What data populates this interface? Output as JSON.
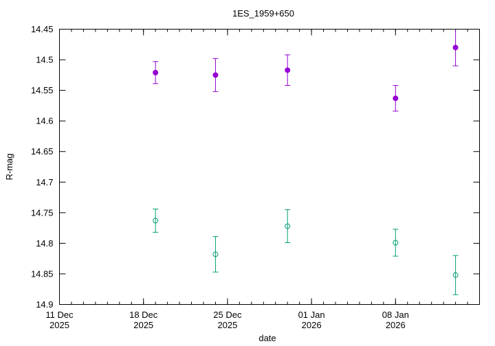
{
  "chart_data": {
    "type": "scatter",
    "title": "1ES_1959+650",
    "xlabel": "date",
    "ylabel": "R-mag",
    "y_inverted": true,
    "ylim": [
      14.9,
      14.45
    ],
    "xlim": [
      "2025-12-11",
      "2026-01-15"
    ],
    "y_ticks": [
      14.45,
      14.5,
      14.55,
      14.6,
      14.65,
      14.7,
      14.75,
      14.8,
      14.85,
      14.9
    ],
    "y_tick_labels": [
      "14.45",
      "14.5",
      "14.55",
      "14.6",
      "14.65",
      "14.7",
      "14.75",
      "14.8",
      "14.85",
      "14.9"
    ],
    "x_ticks": [
      {
        "date": "2025-12-11",
        "line1": "11 Dec",
        "line2": "2025"
      },
      {
        "date": "2025-12-18",
        "line1": "18 Dec",
        "line2": "2025"
      },
      {
        "date": "2025-12-25",
        "line1": "25 Dec",
        "line2": "2025"
      },
      {
        "date": "2026-01-01",
        "line1": "01 Jan",
        "line2": "2026"
      },
      {
        "date": "2026-01-08",
        "line1": "08 Jan",
        "line2": "2026"
      }
    ],
    "grid": false,
    "series": [
      {
        "color": "#9400d3",
        "marker": "filled-circle",
        "points": [
          {
            "x": "2025-12-19",
            "y": 14.521,
            "err": 0.018
          },
          {
            "x": "2025-12-24",
            "y": 14.525,
            "err": 0.027
          },
          {
            "x": "2025-12-30",
            "y": 14.517,
            "err": 0.025
          },
          {
            "x": "2026-01-08",
            "y": 14.563,
            "err": 0.021
          },
          {
            "x": "2026-01-13",
            "y": 14.48,
            "err": 0.03
          }
        ]
      },
      {
        "color": "#009e73",
        "marker": "open-circle",
        "points": [
          {
            "x": "2025-12-19",
            "y": 14.763,
            "err": 0.019
          },
          {
            "x": "2025-12-24",
            "y": 14.818,
            "err": 0.029
          },
          {
            "x": "2025-12-30",
            "y": 14.772,
            "err": 0.027
          },
          {
            "x": "2026-01-08",
            "y": 14.799,
            "err": 0.022
          },
          {
            "x": "2026-01-13",
            "y": 14.852,
            "err": 0.032
          }
        ]
      }
    ]
  }
}
